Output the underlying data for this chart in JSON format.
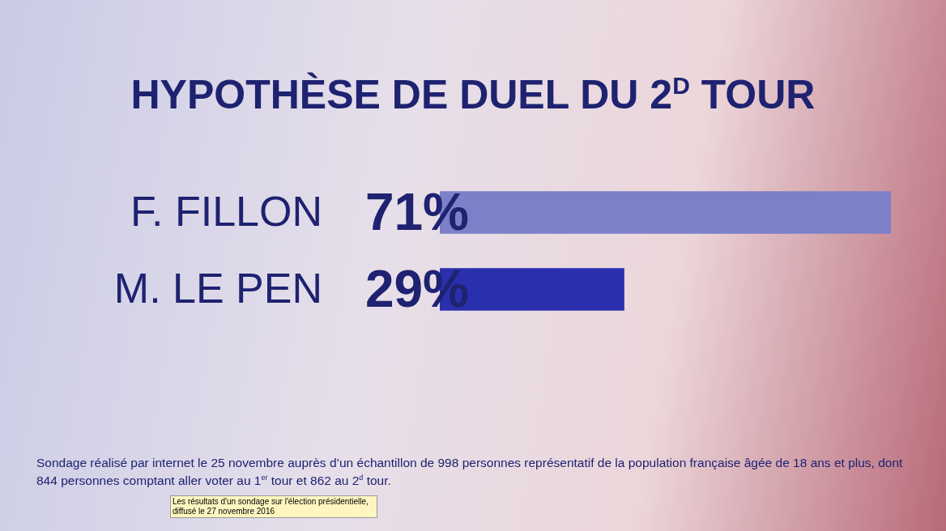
{
  "chart_data": {
    "type": "bar",
    "orientation": "horizontal",
    "title": "HYPOTHÈSE DE DUEL DU  2$^{D}$ TOUR",
    "categories": [
      "F. FILLON",
      "M. LE PEN"
    ],
    "values": [
      71,
      29
    ],
    "colors": [
      "#7b80c9",
      "#2a2fae"
    ],
    "value_labels": [
      "71%",
      "29%"
    ],
    "legend": false,
    "annotations": [
      "Sondage réalisé par internet le 25 novembre auprès d’un échantillon de 998 personnes représentatif de la population française âgée de 18 ans et plus, dont 844 personnes comptant aller voter au 1$^{er}$ tour et 862 au 2$^{d}$ tour.",
      "Les résultats d'un sondage sur l'élection présidentielle, diffusé le 27 novembre 2016"
    ]
  }
}
